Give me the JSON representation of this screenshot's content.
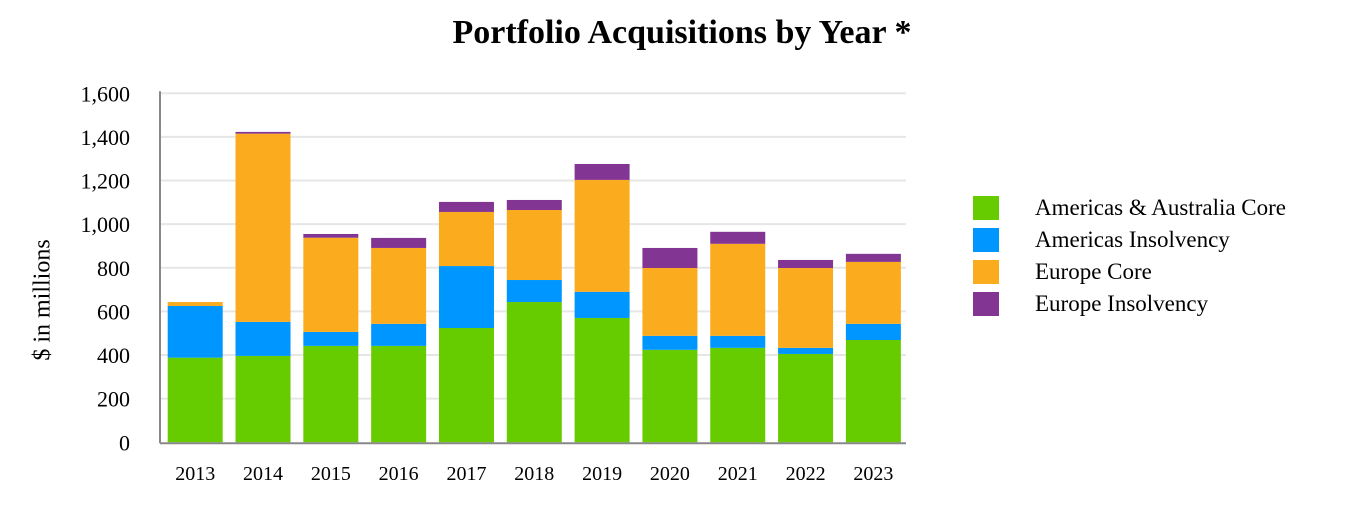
{
  "chart_data": {
    "type": "bar",
    "stacked": true,
    "title": "Portfolio Acquisitions by Year *",
    "xlabel": "",
    "ylabel": "$ in millions",
    "ylim": [
      0,
      1600
    ],
    "yticks": [
      "0",
      "200",
      "400",
      "600",
      "800",
      "1,000",
      "1,200",
      "1,400",
      "1,600"
    ],
    "ytick_values": [
      0,
      200,
      400,
      600,
      800,
      1000,
      1200,
      1400,
      1600
    ],
    "grid": true,
    "legend_position": "right",
    "categories": [
      "2013",
      "2014",
      "2015",
      "2016",
      "2017",
      "2018",
      "2019",
      "2020",
      "2021",
      "2022",
      "2023"
    ],
    "series": [
      {
        "name": "Americas & Australia Core",
        "color": "#66cc00",
        "values": [
          388,
          396,
          442,
          442,
          524,
          643,
          570,
          424,
          433,
          405,
          469
        ]
      },
      {
        "name": "Americas Insolvency",
        "color": "#0096ff",
        "values": [
          237,
          156,
          64,
          101,
          284,
          101,
          120,
          64,
          55,
          28,
          74
        ]
      },
      {
        "name": "Europe Core",
        "color": "#faab1e",
        "values": [
          18,
          863,
          432,
          348,
          248,
          321,
          513,
          311,
          422,
          366,
          284
        ]
      },
      {
        "name": "Europe Insolvency",
        "color": "#833593",
        "values": [
          0,
          8,
          17,
          46,
          46,
          46,
          73,
          92,
          55,
          37,
          37
        ]
      }
    ]
  }
}
